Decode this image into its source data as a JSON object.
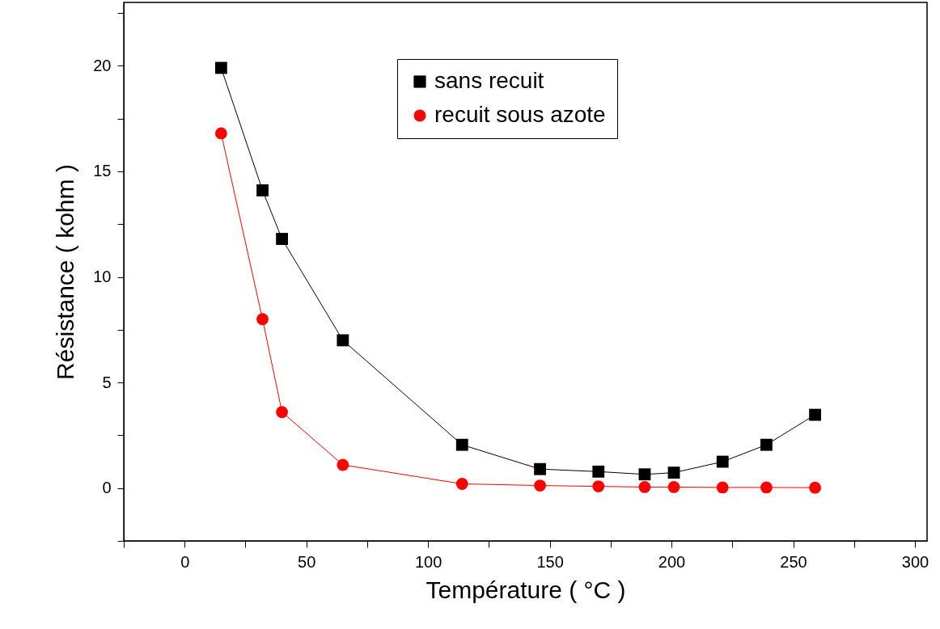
{
  "chart_data": {
    "type": "line",
    "xlabel": "Température ( °C )",
    "ylabel": "Résistance ( kohm )",
    "xlim": [
      -25,
      305
    ],
    "ylim": [
      -2.5,
      23
    ],
    "xticks": [
      {
        "value": -25,
        "label": null
      },
      0,
      {
        "value": 25,
        "label": null
      },
      50,
      {
        "value": 75,
        "label": null
      },
      100,
      {
        "value": 125,
        "label": null
      },
      150,
      {
        "value": 175,
        "label": null
      },
      200,
      {
        "value": 225,
        "label": null
      },
      250,
      {
        "value": 275,
        "label": null
      },
      300
    ],
    "yticks": [
      {
        "value": -2.5,
        "label": null
      },
      0,
      {
        "value": 2.5,
        "label": null
      },
      5,
      {
        "value": 7.5,
        "label": null
      },
      10,
      {
        "value": 12.5,
        "label": null
      },
      15,
      {
        "value": 17.5,
        "label": null
      },
      20,
      {
        "value": 22.5,
        "label": null
      }
    ],
    "grid": false,
    "legend": "top",
    "line_style": "solid",
    "series": [
      {
        "name": "sans recuit",
        "color": "#000000",
        "marker": "square",
        "x": [
          15,
          32,
          40,
          65,
          114,
          146,
          170,
          189,
          201,
          221,
          239,
          259
        ],
        "values": [
          19.9,
          14.1,
          11.8,
          7.0,
          2.05,
          0.9,
          0.78,
          0.65,
          0.73,
          1.25,
          2.05,
          3.47
        ]
      },
      {
        "name": "recuit sous azote",
        "color": "#ff0000",
        "marker": "circle",
        "x": [
          15,
          32,
          40,
          65,
          114,
          146,
          170,
          189,
          201,
          221,
          239,
          259
        ],
        "values": [
          16.8,
          8.0,
          3.6,
          1.1,
          0.2,
          0.12,
          0.08,
          0.05,
          0.05,
          0.03,
          0.03,
          0.02
        ]
      }
    ]
  }
}
